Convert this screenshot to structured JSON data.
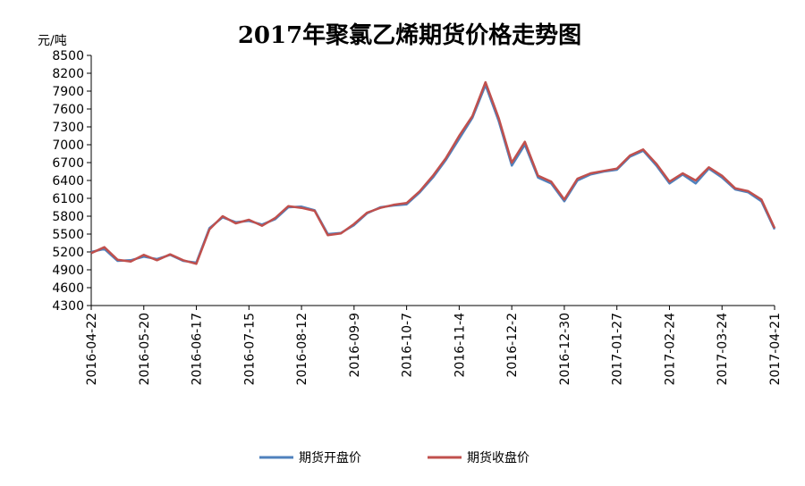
{
  "chart_data": {
    "type": "line",
    "title": "2017年聚氯乙烯期货价格走势图",
    "ylabel": "元/吨",
    "xlabel": "",
    "ylim": [
      4300,
      8500
    ],
    "yticks": [
      4300,
      4600,
      4900,
      5200,
      5500,
      5800,
      6100,
      6400,
      6700,
      7000,
      7300,
      7600,
      7900,
      8200,
      8500
    ],
    "xlim": [
      "2016-04-22",
      "2017-04-21"
    ],
    "x_tick_labels": [
      "2016-04-22",
      "2016-05-20",
      "2016-06-17",
      "2016-07-15",
      "2016-08-12",
      "2016-09-9",
      "2016-10-7",
      "2016-11-4",
      "2016-12-2",
      "2016-12-30",
      "2017-01-27",
      "2017-02-24",
      "2017-03-24",
      "2017-04-21"
    ],
    "grid": false,
    "legend_position": "bottom",
    "series": [
      {
        "name": "期货开盘价",
        "color": "#4f81bd",
        "x": [
          "2016-04-22",
          "2016-04-29",
          "2016-05-06",
          "2016-05-13",
          "2016-05-20",
          "2016-05-27",
          "2016-06-03",
          "2016-06-10",
          "2016-06-17",
          "2016-06-24",
          "2016-07-01",
          "2016-07-08",
          "2016-07-15",
          "2016-07-22",
          "2016-07-29",
          "2016-08-05",
          "2016-08-12",
          "2016-08-19",
          "2016-08-26",
          "2016-09-02",
          "2016-09-09",
          "2016-09-16",
          "2016-09-23",
          "2016-09-30",
          "2016-10-07",
          "2016-10-14",
          "2016-10-21",
          "2016-10-28",
          "2016-11-04",
          "2016-11-11",
          "2016-11-18",
          "2016-11-25",
          "2016-12-02",
          "2016-12-09",
          "2016-12-16",
          "2016-12-23",
          "2016-12-30",
          "2017-01-06",
          "2017-01-13",
          "2017-01-20",
          "2017-01-27",
          "2017-02-03",
          "2017-02-10",
          "2017-02-17",
          "2017-02-24",
          "2017-03-03",
          "2017-03-10",
          "2017-03-17",
          "2017-03-24",
          "2017-03-31",
          "2017-04-07",
          "2017-04-14",
          "2017-04-21"
        ],
        "values": [
          5200,
          5250,
          5050,
          5060,
          5120,
          5080,
          5150,
          5050,
          5020,
          5600,
          5780,
          5700,
          5720,
          5660,
          5750,
          5950,
          5960,
          5900,
          5500,
          5520,
          5650,
          5850,
          5950,
          5980,
          6000,
          6200,
          6450,
          6750,
          7100,
          7450,
          8000,
          7400,
          6650,
          7000,
          6450,
          6350,
          6050,
          6400,
          6500,
          6550,
          6580,
          6800,
          6900,
          6650,
          6350,
          6500,
          6350,
          6600,
          6450,
          6250,
          6200,
          6050,
          5580
        ]
      },
      {
        "name": "期货收盘价",
        "color": "#c0504d",
        "x": [
          "2016-04-22",
          "2016-04-29",
          "2016-05-06",
          "2016-05-13",
          "2016-05-20",
          "2016-05-27",
          "2016-06-03",
          "2016-06-10",
          "2016-06-17",
          "2016-06-24",
          "2016-07-01",
          "2016-07-08",
          "2016-07-15",
          "2016-07-22",
          "2016-07-29",
          "2016-08-05",
          "2016-08-12",
          "2016-08-19",
          "2016-08-26",
          "2016-09-02",
          "2016-09-09",
          "2016-09-16",
          "2016-09-23",
          "2016-09-30",
          "2016-10-07",
          "2016-10-14",
          "2016-10-21",
          "2016-10-28",
          "2016-11-04",
          "2016-11-11",
          "2016-11-18",
          "2016-11-25",
          "2016-12-02",
          "2016-12-09",
          "2016-12-16",
          "2016-12-23",
          "2016-12-30",
          "2017-01-06",
          "2017-01-13",
          "2017-01-20",
          "2017-01-27",
          "2017-02-03",
          "2017-02-10",
          "2017-02-17",
          "2017-02-24",
          "2017-03-03",
          "2017-03-10",
          "2017-03-17",
          "2017-03-24",
          "2017-03-31",
          "2017-04-07",
          "2017-04-14",
          "2017-04-21"
        ],
        "values": [
          5180,
          5280,
          5070,
          5040,
          5150,
          5060,
          5160,
          5060,
          5000,
          5580,
          5800,
          5680,
          5740,
          5640,
          5770,
          5970,
          5940,
          5890,
          5480,
          5510,
          5670,
          5860,
          5940,
          5990,
          6020,
          6220,
          6480,
          6780,
          7150,
          7480,
          8050,
          7450,
          6700,
          7050,
          6480,
          6380,
          6080,
          6430,
          6520,
          6560,
          6600,
          6820,
          6920,
          6680,
          6380,
          6520,
          6400,
          6620,
          6480,
          6270,
          6220,
          6080,
          5600
        ]
      }
    ]
  }
}
